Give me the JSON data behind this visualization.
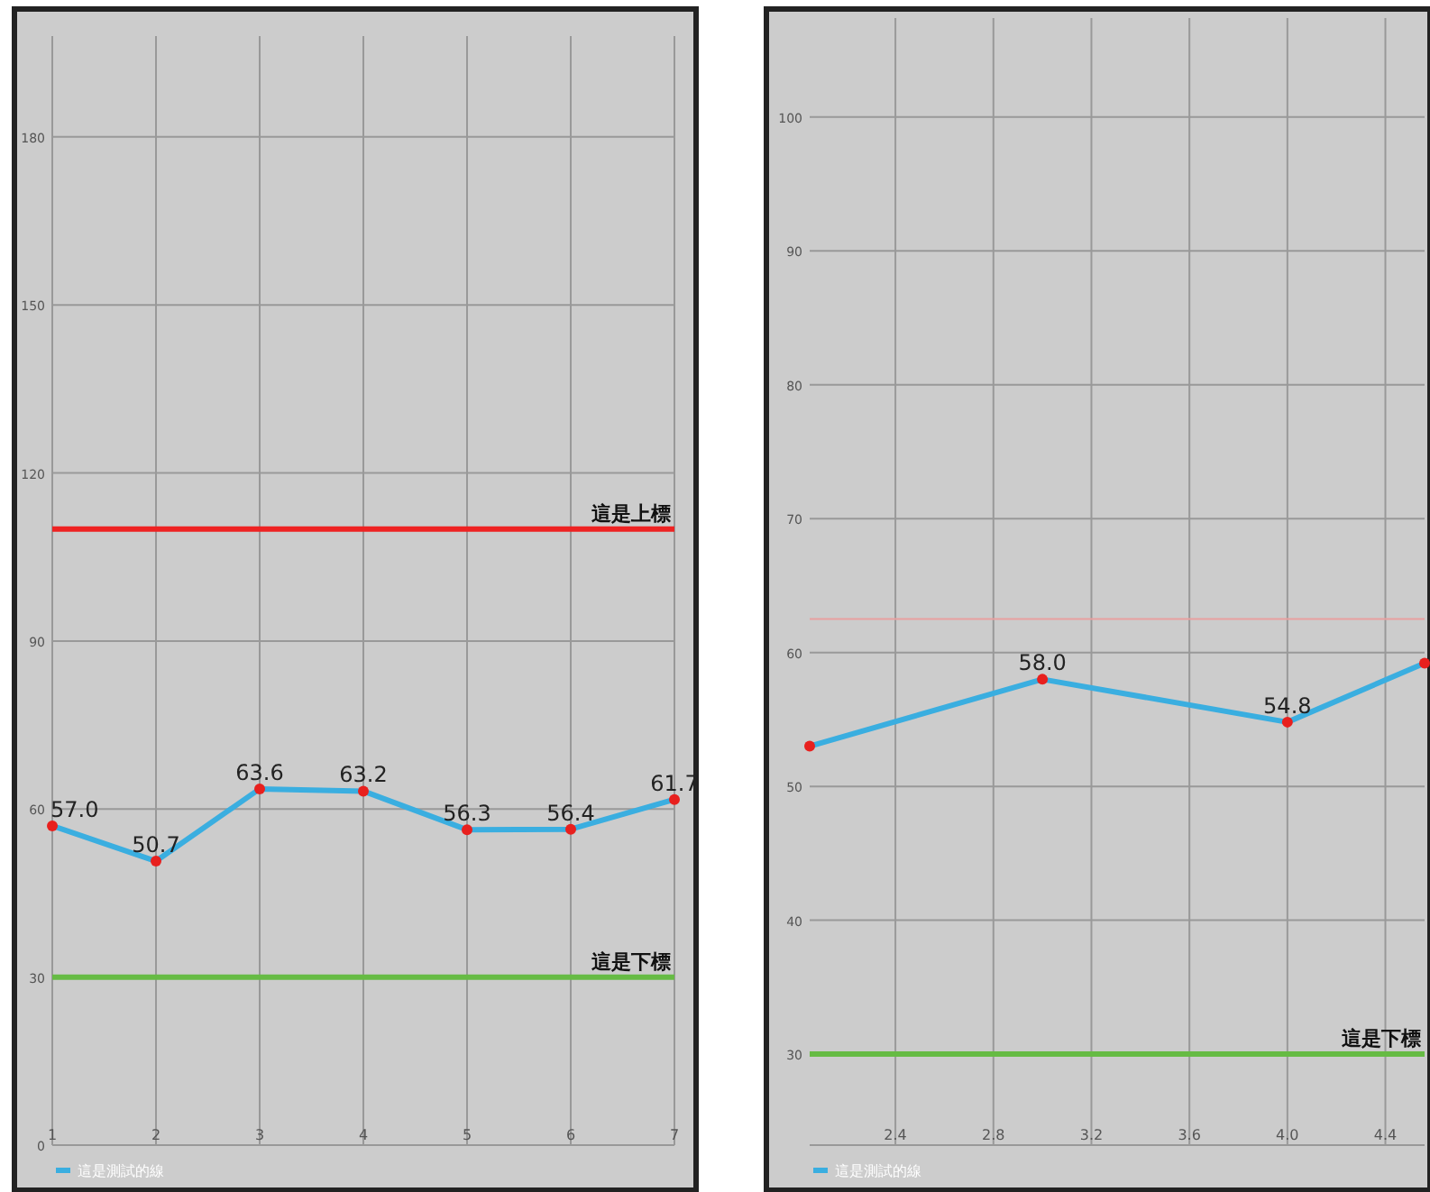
{
  "chart_data": [
    {
      "type": "line",
      "x": [
        1,
        2,
        3,
        4,
        5,
        6,
        7
      ],
      "series": [
        {
          "name": "這是測試的線",
          "color": "#3aaee0",
          "values": [
            57.0,
            50.7,
            63.6,
            63.2,
            56.3,
            56.4,
            61.7
          ],
          "value_labels": [
            "57.0",
            "50.7",
            "63.6",
            "63.2",
            "56.3",
            "56.4",
            "61.7"
          ]
        }
      ],
      "xlim": [
        1,
        7
      ],
      "xticks": [
        1,
        2,
        3,
        4,
        5,
        6,
        7
      ],
      "ylim": [
        0,
        198
      ],
      "yticks": [
        0,
        30,
        60,
        90,
        120,
        150,
        180
      ],
      "ref_lines": [
        {
          "axis": "y",
          "value": 110,
          "label": "這是上標",
          "color": "#ee2222"
        },
        {
          "axis": "y",
          "value": 30,
          "label": "這是下標",
          "color": "#66bb44"
        }
      ],
      "grid": true,
      "legend": "bottom left",
      "marker": "circle"
    },
    {
      "type": "line",
      "x": [
        2.05,
        3,
        4,
        4.56
      ],
      "series": [
        {
          "name": "這是測試的線",
          "color": "#3aaee0",
          "values": [
            53.0,
            58.0,
            54.8,
            59.2
          ],
          "value_labels": [
            null,
            "58.0",
            "54.8",
            null
          ]
        }
      ],
      "xlim": [
        2.05,
        4.56
      ],
      "xticks": [
        2.4,
        2.8,
        3.2,
        3.6,
        {
          "value": 4,
          "label": "4.0"
        },
        4.4
      ],
      "ylim": [
        23.2,
        107.4
      ],
      "yticks": [
        30,
        40,
        50,
        60,
        70,
        80,
        90,
        100
      ],
      "ref_lines": [
        {
          "axis": "y",
          "value": 62.5,
          "label": null,
          "color": "#e8a0a0"
        },
        {
          "axis": "y",
          "value": 30,
          "label": "這是下標",
          "color": "#66bb44"
        }
      ],
      "grid": true,
      "legend": "bottom left",
      "marker": "circle"
    }
  ]
}
